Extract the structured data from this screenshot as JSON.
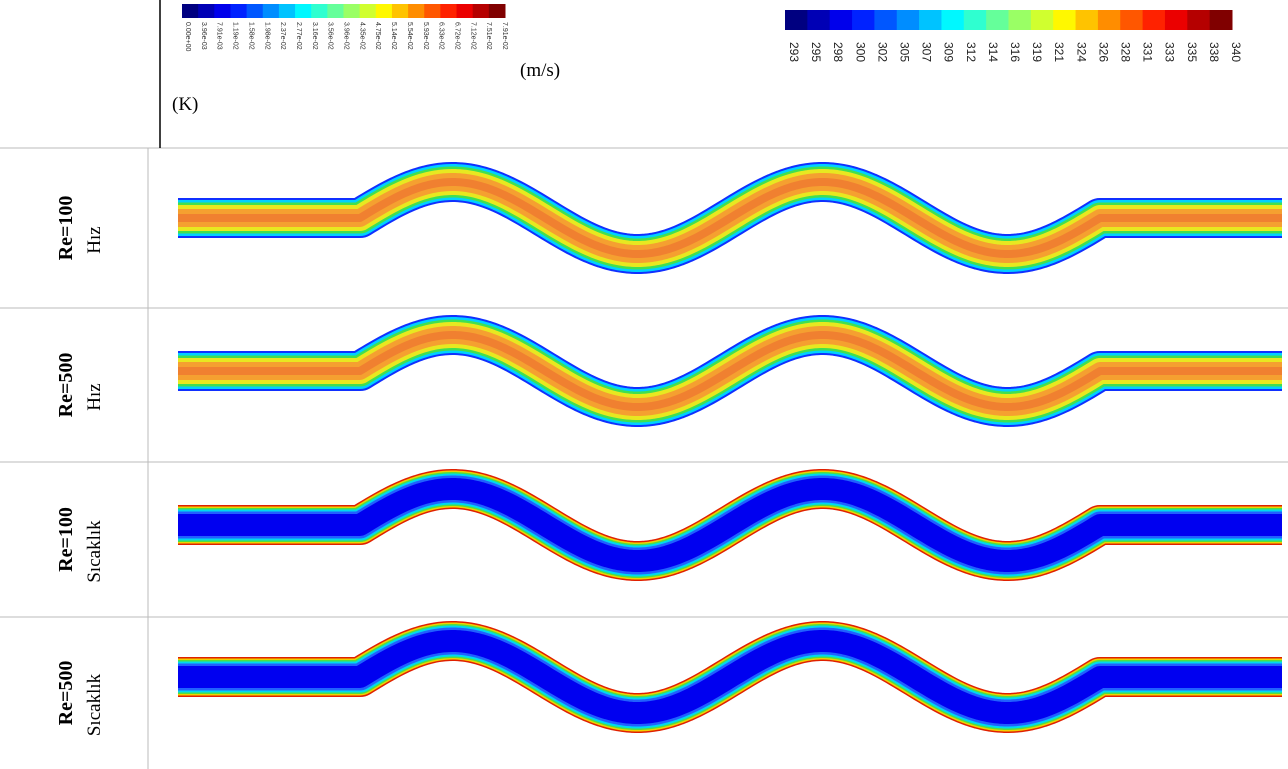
{
  "header": {
    "velocity_scale": {
      "labels": [
        "0.00e+00",
        "3.96e-03",
        "7.91e-03",
        "1.19e-02",
        "1.58e-02",
        "1.98e-02",
        "2.37e-02",
        "2.77e-02",
        "3.16e-02",
        "3.56e-02",
        "3.96e-02",
        "4.35e-02",
        "4.75e-02",
        "5.14e-02",
        "5.54e-02",
        "5.93e-02",
        "6.33e-02",
        "6.72e-02",
        "7.12e-02",
        "7.51e-02",
        "7.91e-02"
      ],
      "unit": "(m/s)"
    },
    "temperature_scale": {
      "labels": [
        "293",
        "295",
        "298",
        "300",
        "302",
        "305",
        "307",
        "309",
        "312",
        "314",
        "316",
        "319",
        "321",
        "324",
        "326",
        "328",
        "331",
        "333",
        "335",
        "338",
        "340"
      ],
      "unit": "(K)"
    }
  },
  "rows": [
    {
      "re": "Re=100",
      "field": "Hız"
    },
    {
      "re": "Re=500",
      "field": "Hız"
    },
    {
      "re": "Re=100",
      "field": "Sıcaklık"
    },
    {
      "re": "Re=500",
      "field": "Sıcaklık"
    }
  ]
}
